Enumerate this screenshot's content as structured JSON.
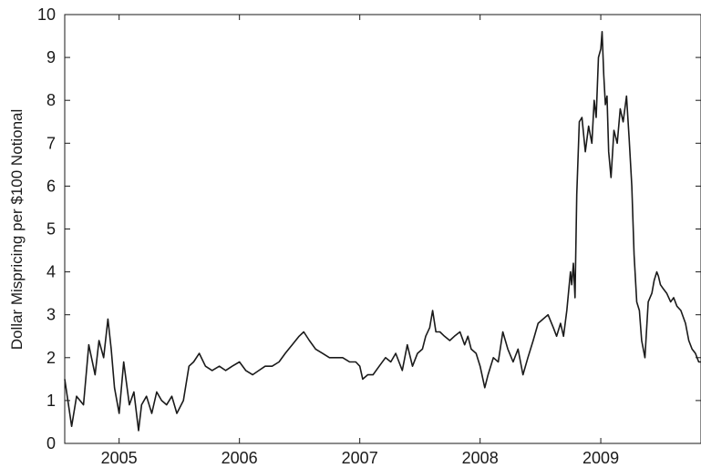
{
  "chart_data": {
    "type": "line",
    "title": "",
    "xlabel": "",
    "ylabel": "Dollar Mispricing per $100 Notional",
    "xlim": [
      "2004-07-20",
      "2009-11-01"
    ],
    "ylim": [
      0,
      10
    ],
    "x_ticks": [
      "2005",
      "2006",
      "2007",
      "2008",
      "2009"
    ],
    "y_ticks": [
      "0",
      "1",
      "2",
      "3",
      "4",
      "5",
      "6",
      "7",
      "8",
      "9",
      "10"
    ],
    "grid": false,
    "legend": "none",
    "line_color": "#1a1a1a",
    "series": [
      {
        "x": [
          "2004-07-20",
          "2004-08-10",
          "2004-08-25",
          "2004-09-15",
          "2004-10-01",
          "2004-10-20",
          "2004-11-01",
          "2004-11-15",
          "2004-11-28",
          "2004-12-08",
          "2004-12-18",
          "2005-01-01",
          "2005-01-15",
          "2005-02-01",
          "2005-02-15",
          "2005-03-01",
          "2005-03-10",
          "2005-03-25",
          "2005-04-10",
          "2005-04-25",
          "2005-05-10",
          "2005-05-25",
          "2005-06-10",
          "2005-06-25",
          "2005-07-15",
          "2005-08-01",
          "2005-08-15",
          "2005-09-01",
          "2005-09-20",
          "2005-10-10",
          "2005-11-01",
          "2005-11-20",
          "2005-12-10",
          "2006-01-01",
          "2006-01-20",
          "2006-02-10",
          "2006-03-01",
          "2006-03-20",
          "2006-04-10",
          "2006-05-01",
          "2006-05-20",
          "2006-06-10",
          "2006-07-01",
          "2006-07-15",
          "2006-08-01",
          "2006-08-20",
          "2006-09-10",
          "2006-10-01",
          "2006-10-20",
          "2006-11-10",
          "2006-12-01",
          "2006-12-20",
          "2007-01-01",
          "2007-01-10",
          "2007-01-25",
          "2007-02-10",
          "2007-03-01",
          "2007-03-20",
          "2007-04-05",
          "2007-04-20",
          "2007-05-10",
          "2007-05-25",
          "2007-06-10",
          "2007-06-25",
          "2007-07-10",
          "2007-07-20",
          "2007-08-01",
          "2007-08-10",
          "2007-08-20",
          "2007-09-01",
          "2007-09-15",
          "2007-10-01",
          "2007-10-15",
          "2007-11-01",
          "2007-11-15",
          "2007-11-25",
          "2007-12-05",
          "2007-12-20",
          "2008-01-01",
          "2008-01-15",
          "2008-01-25",
          "2008-02-10",
          "2008-02-25",
          "2008-03-10",
          "2008-03-25",
          "2008-04-10",
          "2008-04-25",
          "2008-05-10",
          "2008-05-25",
          "2008-06-10",
          "2008-06-25",
          "2008-07-10",
          "2008-07-25",
          "2008-08-10",
          "2008-08-20",
          "2008-09-01",
          "2008-09-10",
          "2008-09-20",
          "2008-10-01",
          "2008-10-05",
          "2008-10-10",
          "2008-10-15",
          "2008-10-20",
          "2008-10-28",
          "2008-11-05",
          "2008-11-15",
          "2008-11-25",
          "2008-12-05",
          "2008-12-12",
          "2008-12-18",
          "2008-12-25",
          "2009-01-01",
          "2009-01-05",
          "2009-01-10",
          "2009-01-15",
          "2009-01-20",
          "2009-01-25",
          "2009-02-01",
          "2009-02-10",
          "2009-02-20",
          "2009-03-01",
          "2009-03-10",
          "2009-03-20",
          "2009-03-28",
          "2009-04-05",
          "2009-04-12",
          "2009-04-20",
          "2009-04-28",
          "2009-05-05",
          "2009-05-15",
          "2009-05-25",
          "2009-06-05",
          "2009-06-12",
          "2009-06-20",
          "2009-06-25",
          "2009-07-01",
          "2009-07-10",
          "2009-07-20",
          "2009-08-01",
          "2009-08-10",
          "2009-08-20",
          "2009-09-01",
          "2009-09-15",
          "2009-09-25",
          "2009-10-05",
          "2009-10-15",
          "2009-10-25",
          "2009-11-01"
        ],
        "y": [
          1.5,
          0.4,
          1.1,
          0.9,
          2.3,
          1.6,
          2.4,
          2.0,
          2.9,
          2.2,
          1.3,
          0.7,
          1.9,
          0.9,
          1.2,
          0.3,
          0.9,
          1.1,
          0.7,
          1.2,
          1.0,
          0.9,
          1.1,
          0.7,
          1.0,
          1.8,
          1.9,
          2.1,
          1.8,
          1.7,
          1.8,
          1.7,
          1.8,
          1.9,
          1.7,
          1.6,
          1.7,
          1.8,
          1.8,
          1.9,
          2.1,
          2.3,
          2.5,
          2.6,
          2.4,
          2.2,
          2.1,
          2.0,
          2.0,
          2.0,
          1.9,
          1.9,
          1.8,
          1.5,
          1.6,
          1.6,
          1.8,
          2.0,
          1.9,
          2.1,
          1.7,
          2.3,
          1.8,
          2.1,
          2.2,
          2.5,
          2.7,
          3.1,
          2.6,
          2.6,
          2.5,
          2.4,
          2.5,
          2.6,
          2.3,
          2.5,
          2.2,
          2.1,
          1.8,
          1.3,
          1.6,
          2.0,
          1.9,
          2.6,
          2.2,
          1.9,
          2.2,
          1.6,
          2.0,
          2.4,
          2.8,
          2.9,
          3.0,
          2.7,
          2.5,
          2.8,
          2.5,
          3.1,
          4.0,
          3.7,
          4.2,
          3.4,
          5.8,
          7.5,
          7.6,
          6.8,
          7.4,
          7.0,
          8.0,
          7.6,
          9.0,
          9.2,
          9.6,
          8.6,
          7.9,
          8.1,
          6.8,
          6.2,
          7.3,
          7.0,
          7.8,
          7.5,
          8.1,
          7.1,
          6.0,
          4.4,
          3.3,
          3.1,
          2.4,
          2.0,
          3.3,
          3.5,
          3.8,
          4.0,
          3.9,
          3.7,
          3.6,
          3.5,
          3.3,
          3.4,
          3.2,
          3.1,
          2.8,
          2.4,
          2.2,
          2.1,
          1.9,
          1.9
        ]
      }
    ]
  }
}
